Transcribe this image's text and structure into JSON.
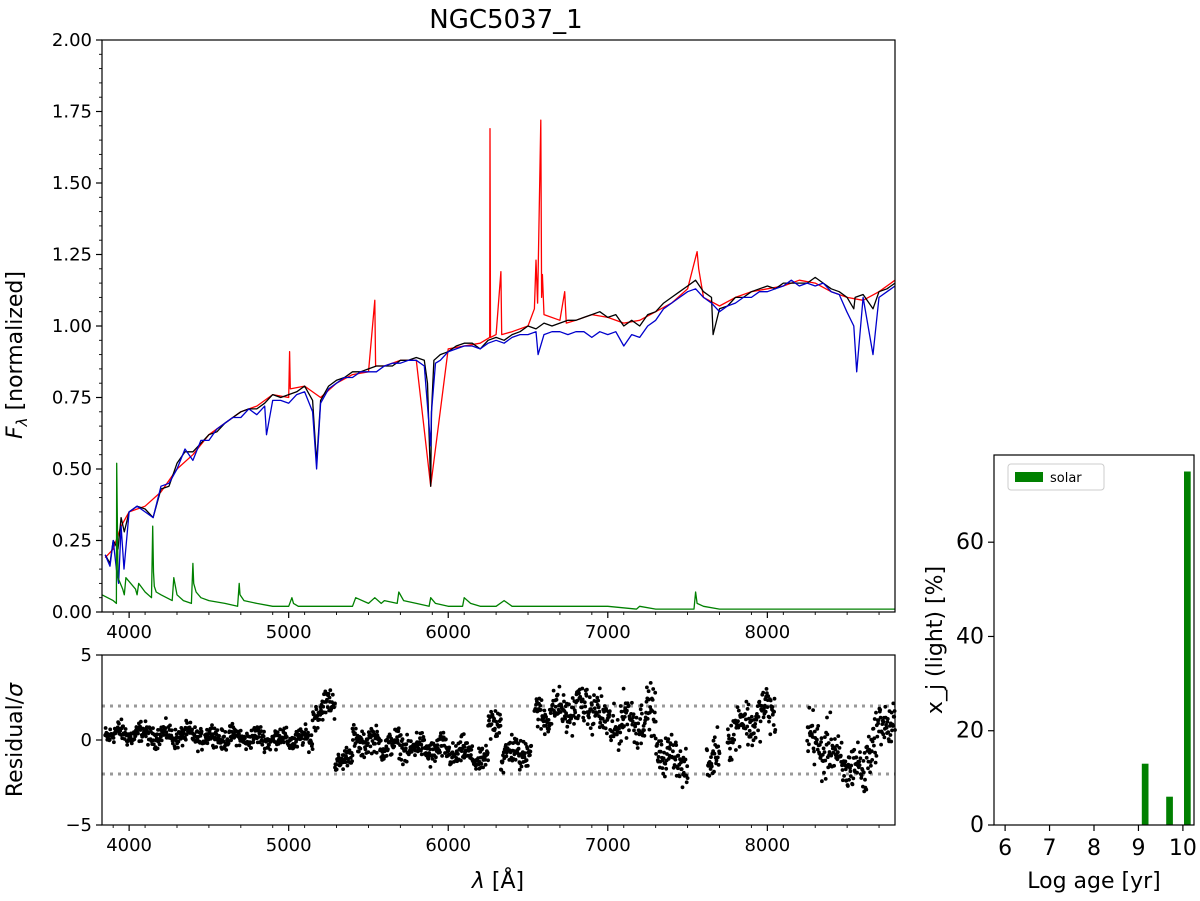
{
  "chart_data": [
    {
      "type": "line",
      "title": "NGC5037_1",
      "xlabel": "",
      "ylabel_main": "F",
      "ylabel_sub": "λ",
      "ylabel_rest": " [normalized]",
      "xlim": [
        3830,
        8800
      ],
      "ylim": [
        0,
        2.0
      ],
      "x_ticks": [
        4000,
        5000,
        6000,
        7000,
        8000
      ],
      "y_ticks": [
        0.0,
        0.25,
        0.5,
        0.75,
        1.0,
        1.25,
        1.5,
        1.75,
        2.0
      ],
      "y_tick_labels": [
        "0.00",
        "0.25",
        "0.50",
        "0.75",
        "1.00",
        "1.25",
        "1.50",
        "1.75",
        "2.00"
      ],
      "grid": false,
      "series": [
        {
          "role": "observed-masked",
          "color": "#ff0000",
          "x": [
            3850,
            3900,
            3950,
            4000,
            4100,
            4200,
            4300,
            4400,
            4500,
            4600,
            4700,
            4800,
            4900,
            5000,
            5006,
            5010,
            5100,
            5200,
            5300,
            5400,
            5500,
            5540,
            5545,
            5600,
            5700,
            5800,
            5890,
            6000,
            6100,
            6200,
            6260,
            6262,
            6265,
            6300,
            6330,
            6335,
            6400,
            6500,
            6540,
            6550,
            6560,
            6580,
            6585,
            6590,
            6600,
            6700,
            6730,
            6740,
            6800,
            6900,
            7000,
            7100,
            7200,
            7300,
            7400,
            7500,
            7560,
            7570,
            7600,
            7700,
            7800,
            7900,
            8000,
            8100,
            8200,
            8300,
            8400,
            8500,
            8600,
            8700,
            8800
          ],
          "y": [
            0.19,
            0.22,
            0.3,
            0.35,
            0.37,
            0.42,
            0.5,
            0.55,
            0.62,
            0.66,
            0.7,
            0.72,
            0.76,
            0.75,
            0.91,
            0.78,
            0.79,
            0.75,
            0.8,
            0.83,
            0.84,
            1.09,
            0.86,
            0.86,
            0.88,
            0.88,
            0.44,
            0.92,
            0.93,
            0.94,
            0.96,
            1.69,
            0.96,
            0.97,
            1.19,
            0.97,
            0.98,
            1.0,
            1.06,
            1.23,
            1.08,
            1.72,
            1.1,
            1.18,
            1.04,
            1.02,
            1.12,
            1.01,
            1.02,
            1.04,
            1.03,
            1.01,
            1.02,
            1.05,
            1.08,
            1.13,
            1.26,
            1.2,
            1.1,
            1.07,
            1.1,
            1.12,
            1.13,
            1.14,
            1.16,
            1.15,
            1.12,
            1.1,
            1.09,
            1.12,
            1.16
          ]
        },
        {
          "role": "observed",
          "color": "#000000",
          "x": [
            3850,
            3880,
            3900,
            3930,
            3950,
            3970,
            4000,
            4050,
            4100,
            4150,
            4200,
            4250,
            4300,
            4350,
            4400,
            4450,
            4500,
            4550,
            4600,
            4650,
            4700,
            4750,
            4800,
            4850,
            4900,
            4950,
            5000,
            5050,
            5100,
            5150,
            5175,
            5200,
            5250,
            5300,
            5350,
            5400,
            5450,
            5500,
            5550,
            5600,
            5650,
            5700,
            5750,
            5800,
            5850,
            5870,
            5890,
            5895,
            5910,
            5950,
            6000,
            6050,
            6100,
            6150,
            6200,
            6250,
            6300,
            6350,
            6400,
            6450,
            6500,
            6550,
            6600,
            6650,
            6700,
            6750,
            6800,
            6850,
            6900,
            6950,
            7000,
            7050,
            7100,
            7150,
            7200,
            7250,
            7300,
            7350,
            7400,
            7450,
            7500,
            7550,
            7600,
            7650,
            7660,
            7700,
            7750,
            7800,
            7850,
            7900,
            7950,
            8000,
            8050,
            8100,
            8150,
            8200,
            8250,
            8300,
            8350,
            8400,
            8450,
            8500,
            8542,
            8550,
            8600,
            8662,
            8700,
            8750,
            8800
          ],
          "y": [
            0.2,
            0.17,
            0.25,
            0.22,
            0.33,
            0.28,
            0.35,
            0.37,
            0.36,
            0.33,
            0.43,
            0.44,
            0.52,
            0.56,
            0.56,
            0.59,
            0.62,
            0.63,
            0.66,
            0.68,
            0.7,
            0.71,
            0.71,
            0.73,
            0.76,
            0.75,
            0.76,
            0.77,
            0.79,
            0.74,
            0.52,
            0.74,
            0.79,
            0.81,
            0.82,
            0.84,
            0.84,
            0.85,
            0.86,
            0.86,
            0.86,
            0.88,
            0.88,
            0.89,
            0.88,
            0.8,
            0.44,
            0.7,
            0.88,
            0.9,
            0.91,
            0.93,
            0.94,
            0.94,
            0.92,
            0.95,
            0.96,
            0.95,
            0.97,
            0.98,
            1.0,
            0.99,
            1.01,
            1.0,
            1.01,
            1.02,
            1.02,
            1.03,
            1.04,
            1.05,
            1.03,
            1.04,
            1.0,
            1.02,
            1.0,
            1.04,
            1.05,
            1.08,
            1.1,
            1.12,
            1.14,
            1.16,
            1.12,
            1.1,
            0.97,
            1.06,
            1.07,
            1.1,
            1.1,
            1.12,
            1.13,
            1.14,
            1.13,
            1.15,
            1.15,
            1.15,
            1.15,
            1.17,
            1.15,
            1.13,
            1.12,
            1.1,
            1.06,
            1.1,
            1.11,
            1.06,
            1.12,
            1.13,
            1.15
          ]
        },
        {
          "role": "model",
          "color": "#0000cc",
          "x": [
            3850,
            3880,
            3900,
            3920,
            3934,
            3950,
            3968,
            4000,
            4050,
            4100,
            4150,
            4200,
            4250,
            4300,
            4350,
            4400,
            4450,
            4500,
            4550,
            4600,
            4650,
            4700,
            4750,
            4800,
            4850,
            4861,
            4900,
            4950,
            5000,
            5050,
            5100,
            5150,
            5175,
            5200,
            5250,
            5300,
            5350,
            5400,
            5450,
            5500,
            5550,
            5600,
            5650,
            5700,
            5750,
            5800,
            5850,
            5890,
            5895,
            5920,
            5950,
            6000,
            6050,
            6100,
            6150,
            6200,
            6250,
            6300,
            6350,
            6400,
            6450,
            6500,
            6550,
            6563,
            6600,
            6650,
            6700,
            6750,
            6800,
            6850,
            6900,
            6950,
            7000,
            7050,
            7100,
            7150,
            7200,
            7250,
            7300,
            7350,
            7400,
            7450,
            7500,
            7550,
            7600,
            7650,
            7700,
            7750,
            7800,
            7850,
            7900,
            7950,
            8000,
            8050,
            8100,
            8150,
            8200,
            8250,
            8300,
            8350,
            8400,
            8450,
            8498,
            8542,
            8560,
            8600,
            8662,
            8700,
            8750,
            8800
          ],
          "y": [
            0.2,
            0.16,
            0.25,
            0.15,
            0.1,
            0.3,
            0.15,
            0.35,
            0.37,
            0.35,
            0.33,
            0.44,
            0.45,
            0.5,
            0.57,
            0.53,
            0.6,
            0.6,
            0.64,
            0.66,
            0.68,
            0.68,
            0.71,
            0.69,
            0.72,
            0.62,
            0.74,
            0.74,
            0.73,
            0.76,
            0.77,
            0.7,
            0.5,
            0.73,
            0.78,
            0.8,
            0.82,
            0.82,
            0.84,
            0.84,
            0.84,
            0.86,
            0.87,
            0.87,
            0.88,
            0.88,
            0.86,
            0.58,
            0.7,
            0.87,
            0.88,
            0.91,
            0.92,
            0.93,
            0.93,
            0.92,
            0.94,
            0.95,
            0.94,
            0.96,
            0.97,
            0.97,
            0.98,
            0.9,
            0.97,
            0.98,
            0.98,
            0.97,
            0.98,
            0.98,
            0.96,
            0.98,
            0.97,
            0.98,
            0.93,
            0.97,
            0.96,
            1.0,
            1.02,
            1.06,
            1.08,
            1.1,
            1.12,
            1.13,
            1.1,
            1.08,
            1.05,
            1.07,
            1.08,
            1.1,
            1.1,
            1.12,
            1.12,
            1.13,
            1.14,
            1.16,
            1.14,
            1.15,
            1.14,
            1.15,
            1.12,
            1.11,
            1.05,
            1.0,
            0.84,
            1.1,
            0.9,
            1.1,
            1.12,
            1.14
          ]
        },
        {
          "role": "young-component",
          "color": "#008000",
          "x": [
            3830,
            3900,
            3920,
            3922,
            3930,
            3960,
            3970,
            3980,
            4040,
            4050,
            4060,
            4100,
            4140,
            4148,
            4153,
            4158,
            4170,
            4200,
            4270,
            4280,
            4300,
            4340,
            4390,
            4400,
            4405,
            4420,
            4450,
            4500,
            4600,
            4680,
            4690,
            4695,
            4720,
            4800,
            4900,
            5000,
            5020,
            5030,
            5060,
            5200,
            5400,
            5420,
            5500,
            5540,
            5580,
            5600,
            5680,
            5690,
            5720,
            5800,
            5880,
            5890,
            5920,
            6000,
            6090,
            6100,
            6140,
            6200,
            6300,
            6350,
            6400,
            6500,
            6600,
            6800,
            7000,
            7180,
            7200,
            7300,
            7540,
            7550,
            7560,
            7600,
            7700,
            7800,
            8000,
            8200,
            8400,
            8600,
            8800
          ],
          "y": [
            0.06,
            0.04,
            0.03,
            0.52,
            0.12,
            0.08,
            0.06,
            0.12,
            0.08,
            0.06,
            0.1,
            0.07,
            0.05,
            0.3,
            0.14,
            0.09,
            0.07,
            0.06,
            0.04,
            0.12,
            0.06,
            0.04,
            0.03,
            0.17,
            0.1,
            0.07,
            0.05,
            0.04,
            0.03,
            0.02,
            0.1,
            0.06,
            0.04,
            0.03,
            0.02,
            0.02,
            0.05,
            0.03,
            0.02,
            0.02,
            0.02,
            0.05,
            0.03,
            0.05,
            0.03,
            0.04,
            0.03,
            0.07,
            0.04,
            0.03,
            0.02,
            0.05,
            0.03,
            0.02,
            0.02,
            0.05,
            0.03,
            0.02,
            0.02,
            0.04,
            0.02,
            0.02,
            0.02,
            0.02,
            0.02,
            0.01,
            0.02,
            0.01,
            0.01,
            0.07,
            0.03,
            0.02,
            0.01,
            0.01,
            0.01,
            0.01,
            0.01,
            0.01,
            0.01
          ]
        }
      ]
    },
    {
      "type": "scatter",
      "title": "",
      "xlabel_main": "λ",
      "xlabel_rest": " [Å]",
      "ylabel_main": "Residual/",
      "ylabel_sigma": "σ",
      "xlim": [
        3830,
        8800
      ],
      "ylim": [
        -5,
        5
      ],
      "x_ticks": [
        4000,
        5000,
        6000,
        7000,
        8000
      ],
      "y_ticks": [
        -5,
        0,
        5
      ],
      "y_tick_labels": [
        "−5",
        "0",
        "5"
      ],
      "reference_lines": [
        2,
        -2
      ],
      "grid": false,
      "point_color": "#000000",
      "segments": [
        {
          "x": [
            3850,
            5150
          ],
          "level": [
            0.4,
            0.0
          ],
          "spread": 0.45
        },
        {
          "x": [
            5150,
            5290
          ],
          "level": [
            1.6,
            2.2
          ],
          "spread": 0.6
        },
        {
          "x": [
            5290,
            5400
          ],
          "level": [
            -1.2,
            -1.0
          ],
          "spread": 0.45
        },
        {
          "x": [
            5400,
            6100
          ],
          "level": [
            0.0,
            -0.8
          ],
          "spread": 0.6
        },
        {
          "x": [
            6100,
            6250
          ],
          "level": [
            -0.8,
            -1.3
          ],
          "spread": 0.5
        },
        {
          "x": [
            6250,
            6330
          ],
          "level": [
            0.3,
            1.8
          ],
          "spread": 0.8
        },
        {
          "x": [
            6330,
            6520
          ],
          "level": [
            -1.0,
            -0.5
          ],
          "spread": 0.7
        },
        {
          "x": [
            6540,
            6950
          ],
          "level": [
            1.5,
            2.0
          ],
          "spread": 0.8
        },
        {
          "x": [
            6950,
            7300
          ],
          "level": [
            0.8,
            1.5
          ],
          "spread": 1.0
        },
        {
          "x": [
            7300,
            7500
          ],
          "level": [
            -0.5,
            -1.5
          ],
          "spread": 0.8
        },
        {
          "x": [
            7620,
            7700
          ],
          "level": [
            -1.2,
            -0.8
          ],
          "spread": 0.9
        },
        {
          "x": [
            7750,
            8050
          ],
          "level": [
            0.5,
            1.8
          ],
          "spread": 1.0
        },
        {
          "x": [
            8250,
            8400
          ],
          "level": [
            0.0,
            -0.5
          ],
          "spread": 1.2
        },
        {
          "x": [
            8400,
            8620
          ],
          "level": [
            -1.0,
            -2.0
          ],
          "spread": 1.0
        },
        {
          "x": [
            8620,
            8800
          ],
          "level": [
            -0.5,
            1.5
          ],
          "spread": 1.0
        }
      ]
    },
    {
      "type": "bar",
      "title": "",
      "xlabel": "Log age [yr]",
      "ylabel": "x_j (light) [%]",
      "xlim": [
        5.75,
        10.25
      ],
      "ylim": [
        0,
        78.5
      ],
      "x_ticks": [
        6,
        7,
        8,
        9,
        10
      ],
      "y_ticks": [
        0,
        20,
        40,
        60
      ],
      "grid": false,
      "legend_position": "top-left",
      "series": [
        {
          "name": "solar",
          "color": "#008000",
          "x": [
            9.15,
            9.7,
            10.1
          ],
          "values": [
            13,
            6,
            75
          ],
          "bar_width": 0.15
        }
      ]
    }
  ]
}
